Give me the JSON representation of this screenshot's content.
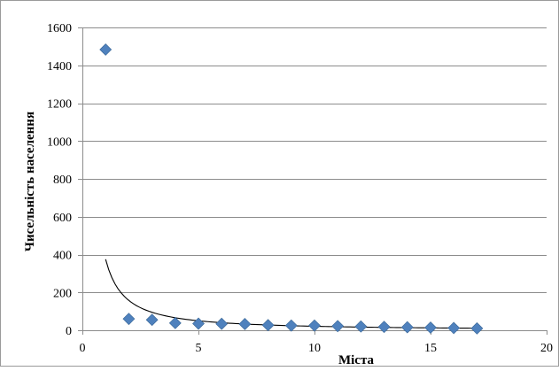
{
  "chart_data": {
    "type": "scatter",
    "title": "",
    "xlabel": "Міста",
    "ylabel": "Чисельність населення",
    "xlim": [
      0,
      20
    ],
    "ylim": [
      0,
      1600
    ],
    "xticks": [
      0,
      5,
      10,
      15,
      20
    ],
    "yticks": [
      0,
      200,
      400,
      600,
      800,
      1000,
      1200,
      1400,
      1600
    ],
    "grid": "horizontal",
    "legend": "none",
    "series": [
      {
        "marker": "diamond",
        "color": "#4F81BD",
        "points": [
          {
            "x": 1,
            "y": 1483
          },
          {
            "x": 2,
            "y": 60
          },
          {
            "x": 3,
            "y": 55
          },
          {
            "x": 4,
            "y": 38
          },
          {
            "x": 5,
            "y": 35
          },
          {
            "x": 6,
            "y": 34
          },
          {
            "x": 7,
            "y": 33
          },
          {
            "x": 8,
            "y": 27
          },
          {
            "x": 9,
            "y": 25
          },
          {
            "x": 10,
            "y": 25
          },
          {
            "x": 11,
            "y": 22
          },
          {
            "x": 12,
            "y": 20
          },
          {
            "x": 13,
            "y": 18
          },
          {
            "x": 14,
            "y": 16
          },
          {
            "x": 15,
            "y": 14
          },
          {
            "x": 16,
            "y": 12
          },
          {
            "x": 17,
            "y": 10
          }
        ]
      }
    ],
    "trendline": {
      "type": "power",
      "color": "#000000",
      "x_range": [
        1,
        17
      ],
      "a": 375,
      "b": -1.25
    }
  }
}
